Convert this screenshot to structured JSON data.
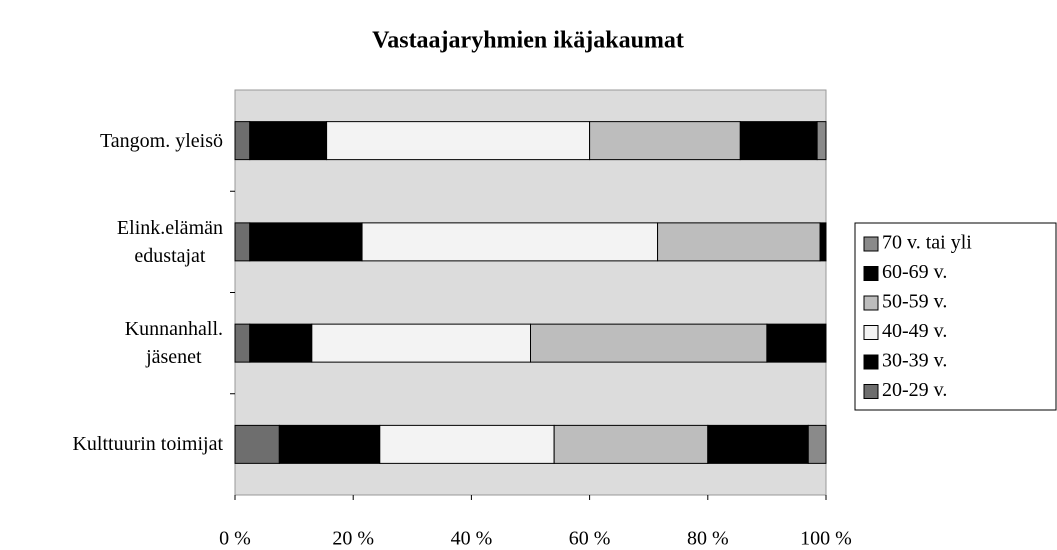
{
  "chart_data": {
    "type": "stacked-bar-horizontal",
    "title": "Vastaajaryhmien ikäjakaumat",
    "categories": [
      "Tangom. yleisö",
      "Elink.elämän\nedustajat",
      "Kunnanhall.\njäsenet",
      "Kulttuurin toimijat"
    ],
    "series": [
      {
        "name": "20-29 v.",
        "color": "#6e6e6e",
        "values": [
          2.5,
          2.5,
          2.5,
          7.5
        ]
      },
      {
        "name": "30-39 v.",
        "color": "#000000",
        "values": [
          13,
          19,
          10.5,
          17
        ]
      },
      {
        "name": "40-49 v.",
        "color": "#f3f3f3",
        "values": [
          44.5,
          50,
          37,
          29.5
        ]
      },
      {
        "name": "50-59 v.",
        "color": "#bdbdbd",
        "values": [
          25.5,
          27.5,
          40,
          26
        ]
      },
      {
        "name": "60-69 v.",
        "color": "#000000",
        "values": [
          13,
          1,
          10,
          17
        ]
      },
      {
        "name": "70 v. tai yli",
        "color": "#8a8a8a",
        "values": [
          1.5,
          0,
          0,
          3
        ]
      }
    ],
    "xlim": [
      0,
      100
    ],
    "xticks": [
      {
        "value": 0,
        "label": "0 %"
      },
      {
        "value": 20,
        "label": "20 %"
      },
      {
        "value": 40,
        "label": "40 %"
      },
      {
        "value": 60,
        "label": "60 %"
      },
      {
        "value": 80,
        "label": "80 %"
      },
      {
        "value": 100,
        "label": "100 %"
      }
    ],
    "legend": "right"
  }
}
